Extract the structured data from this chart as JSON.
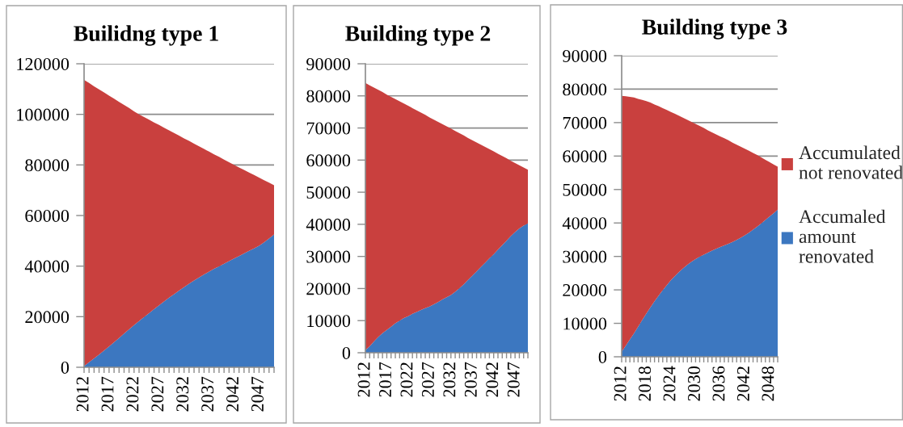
{
  "chart_data": [
    {
      "type": "area",
      "title": "Builidng type 1",
      "stacked": true,
      "grid": "y",
      "categories": [
        "2012",
        null,
        null,
        null,
        null,
        "2017",
        null,
        null,
        null,
        null,
        "2022",
        null,
        null,
        null,
        null,
        "2027",
        null,
        null,
        null,
        null,
        "2032",
        null,
        null,
        null,
        null,
        "2037",
        null,
        null,
        null,
        null,
        "2042",
        null,
        null,
        null,
        null,
        "2047",
        null,
        null,
        null
      ],
      "ylim": [
        0,
        120000
      ],
      "yticks": [
        0,
        20000,
        40000,
        60000,
        80000,
        100000,
        120000
      ],
      "series": [
        {
          "color": "#3c77c0",
          "values": [
            500,
            2000,
            3500,
            5000,
            6600,
            8200,
            9900,
            11600,
            13300,
            15000,
            16700,
            18300,
            19900,
            21400,
            23000,
            24500,
            26000,
            27500,
            28900,
            30300,
            31700,
            33000,
            34300,
            35500,
            36700,
            37800,
            38900,
            39900,
            40900,
            42000,
            43000,
            44000,
            45000,
            46000,
            47000,
            48000,
            49400,
            50900,
            52500
          ]
        },
        {
          "color": "#c9403e",
          "values": [
            113100,
            110400,
            107600,
            104900,
            102100,
            99200,
            96300,
            93300,
            90400,
            87500,
            84500,
            81700,
            79000,
            76500,
            73800,
            71300,
            68700,
            66200,
            63700,
            61300,
            58800,
            56500,
            54100,
            51900,
            49600,
            47500,
            45300,
            43300,
            41200,
            39100,
            37000,
            35000,
            33000,
            31000,
            29000,
            27000,
            24600,
            22100,
            19500
          ]
        }
      ]
    },
    {
      "type": "area",
      "title": "Building type 2",
      "stacked": true,
      "grid": "y",
      "categories": [
        "2012",
        null,
        null,
        null,
        null,
        "2017",
        null,
        null,
        null,
        null,
        "2022",
        null,
        null,
        null,
        null,
        "2027",
        null,
        null,
        null,
        null,
        "2032",
        null,
        null,
        null,
        null,
        "2037",
        null,
        null,
        null,
        null,
        "2042",
        null,
        null,
        null,
        null,
        "2047",
        null,
        null,
        null
      ],
      "ylim": [
        0,
        90000
      ],
      "yticks": [
        0,
        10000,
        20000,
        30000,
        40000,
        50000,
        60000,
        70000,
        80000,
        90000
      ],
      "series": [
        {
          "color": "#3c77c0",
          "values": [
            800,
            2000,
            3500,
            4900,
            6100,
            7100,
            8100,
            9200,
            10000,
            10800,
            11400,
            12100,
            12700,
            13300,
            13900,
            14400,
            15100,
            15800,
            16600,
            17300,
            18000,
            19000,
            20100,
            21300,
            22700,
            24000,
            25300,
            26700,
            28000,
            29400,
            30700,
            32100,
            33500,
            34900,
            36300,
            37600,
            38700,
            39600,
            40300
          ]
        },
        {
          "color": "#c9403e",
          "values": [
            83200,
            81300,
            79100,
            77000,
            75100,
            73300,
            71600,
            69800,
            68300,
            66800,
            65500,
            64100,
            62800,
            61500,
            60200,
            58900,
            57500,
            56100,
            54600,
            53200,
            51800,
            50100,
            48300,
            46400,
            44200,
            42200,
            40200,
            38100,
            36100,
            34000,
            32000,
            29900,
            27800,
            25700,
            23500,
            21500,
            19700,
            18100,
            16700
          ]
        }
      ]
    },
    {
      "type": "area",
      "title": "Building type 3",
      "stacked": true,
      "grid": "y",
      "legend": "right",
      "categories": [
        "2012",
        null,
        null,
        null,
        null,
        null,
        "2018",
        null,
        null,
        null,
        null,
        null,
        "2024",
        null,
        null,
        null,
        null,
        null,
        "2030",
        null,
        null,
        null,
        null,
        null,
        "2036",
        null,
        null,
        null,
        null,
        null,
        "2042",
        null,
        null,
        null,
        null,
        null,
        "2048",
        null,
        null
      ],
      "ylim": [
        0,
        90000
      ],
      "yticks": [
        0,
        10000,
        20000,
        30000,
        40000,
        50000,
        60000,
        70000,
        80000,
        90000
      ],
      "series": [
        {
          "name": "Accumaled amount renovated",
          "color": "#3c77c0",
          "values": [
            1500,
            3300,
            5200,
            7000,
            9000,
            11000,
            12900,
            14800,
            16600,
            18300,
            19900,
            21400,
            22900,
            24200,
            25400,
            26500,
            27500,
            28400,
            29200,
            29900,
            30500,
            31100,
            31700,
            32300,
            32800,
            33300,
            33800,
            34300,
            34900,
            35600,
            36300,
            37100,
            38000,
            38900,
            39900,
            40900,
            41900,
            42900,
            44000
          ]
        },
        {
          "name": "Accumulated not renovated",
          "color": "#c9403e",
          "values": [
            76500,
            74600,
            72500,
            70500,
            68100,
            65800,
            63500,
            61200,
            58800,
            56600,
            54400,
            52400,
            50300,
            48400,
            46600,
            44900,
            43300,
            41800,
            40400,
            39100,
            37900,
            36600,
            35400,
            34200,
            33100,
            32000,
            30900,
            29700,
            28500,
            27200,
            25900,
            24500,
            22900,
            21400,
            19700,
            18000,
            16300,
            14600,
            12800
          ]
        }
      ]
    }
  ]
}
